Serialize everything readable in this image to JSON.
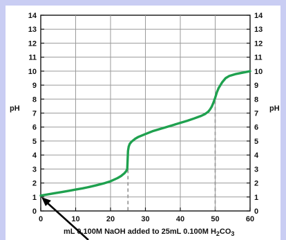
{
  "chart_data": {
    "type": "line",
    "title": "",
    "ylabel_left": "pH",
    "ylabel_right": "pH",
    "xlabel_parts": {
      "prefix": "mL 0.100M NaOH added to 25mL 0.100M H",
      "sub1": "2",
      "mid": "CO",
      "sub2": "3"
    },
    "xlim": [
      0,
      60
    ],
    "ylim": [
      0,
      14
    ],
    "x_ticks": [
      0,
      10,
      20,
      30,
      40,
      50,
      60
    ],
    "y_ticks": [
      0,
      1,
      2,
      3,
      4,
      5,
      6,
      7,
      8,
      9,
      10,
      11,
      12,
      13,
      14
    ],
    "grid": true,
    "curve_color": "#1fa14f",
    "equivalence_lines_x": [
      25,
      50
    ],
    "series": [
      {
        "x": [
          0,
          2,
          4,
          6,
          8,
          10,
          12,
          14,
          16,
          18,
          20,
          22,
          23,
          24,
          24.5,
          24.8,
          25,
          25.2,
          25.5,
          26,
          27,
          28,
          30,
          32,
          34,
          36,
          38,
          40,
          42,
          44,
          46,
          47,
          48,
          48.5,
          49,
          49.5,
          50,
          50.5,
          51,
          52,
          53,
          54,
          56,
          58,
          60
        ],
        "y": [
          1.1,
          1.18,
          1.27,
          1.35,
          1.44,
          1.53,
          1.62,
          1.72,
          1.84,
          1.97,
          2.12,
          2.35,
          2.5,
          2.7,
          2.85,
          3.0,
          4.3,
          4.6,
          4.8,
          4.95,
          5.15,
          5.3,
          5.5,
          5.7,
          5.85,
          6.0,
          6.15,
          6.3,
          6.45,
          6.62,
          6.8,
          6.92,
          7.1,
          7.25,
          7.45,
          7.75,
          8.1,
          8.5,
          8.8,
          9.2,
          9.5,
          9.65,
          9.8,
          9.9,
          10.0
        ]
      }
    ]
  }
}
